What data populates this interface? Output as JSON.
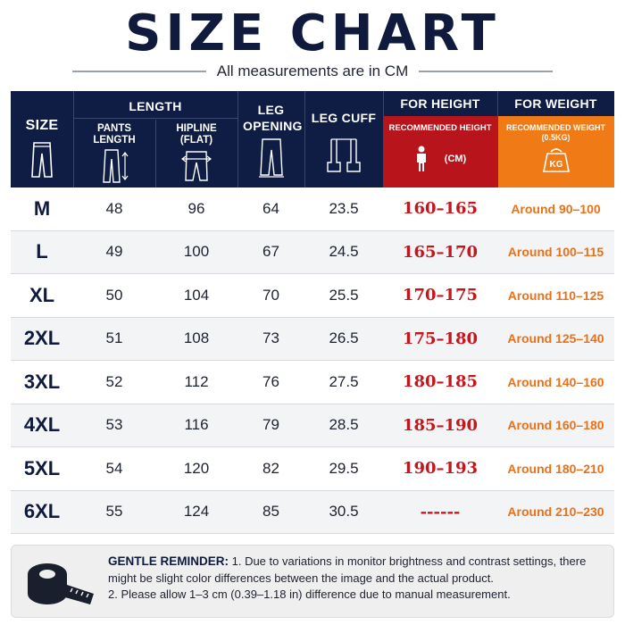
{
  "title": "SIZE CHART",
  "subtitle": "All measurements are in CM",
  "header": {
    "size": "SIZE",
    "length": "LENGTH",
    "pants_length": "PANTS LENGTH",
    "hipline": "HIPLINE (FLAT)",
    "leg_opening": "LEG OPENING",
    "leg_cuff": "LEG CUFF",
    "for_height": "FOR HEIGHT",
    "recommended_height": "RECOMMENDED HEIGHT",
    "height_unit": "(CM)",
    "for_weight": "FOR WEIGHT",
    "recommended_weight": "RECOMMENDED WEIGHT (0.5KG)",
    "weight_badge": "KG"
  },
  "colors": {
    "navy": "#0f1d44",
    "red": "#c4161c",
    "orange": "#e8711a"
  },
  "rows": [
    {
      "size": "M",
      "pants_length": "48",
      "hipline": "96",
      "leg_opening": "64",
      "leg_cuff": "23.5",
      "height": "160–165",
      "weight": "Around 90–100"
    },
    {
      "size": "L",
      "pants_length": "49",
      "hipline": "100",
      "leg_opening": "67",
      "leg_cuff": "24.5",
      "height": "165–170",
      "weight": "Around 100–115"
    },
    {
      "size": "XL",
      "pants_length": "50",
      "hipline": "104",
      "leg_opening": "70",
      "leg_cuff": "25.5",
      "height": "170–175",
      "weight": "Around 110–125"
    },
    {
      "size": "2XL",
      "pants_length": "51",
      "hipline": "108",
      "leg_opening": "73",
      "leg_cuff": "26.5",
      "height": "175–180",
      "weight": "Around 125–140"
    },
    {
      "size": "3XL",
      "pants_length": "52",
      "hipline": "112",
      "leg_opening": "76",
      "leg_cuff": "27.5",
      "height": "180–185",
      "weight": "Around 140–160"
    },
    {
      "size": "4XL",
      "pants_length": "53",
      "hipline": "116",
      "leg_opening": "79",
      "leg_cuff": "28.5",
      "height": "185–190",
      "weight": "Around 160–180"
    },
    {
      "size": "5XL",
      "pants_length": "54",
      "hipline": "120",
      "leg_opening": "82",
      "leg_cuff": "29.5",
      "height": "190–193",
      "weight": "Around 180–210"
    },
    {
      "size": "6XL",
      "pants_length": "55",
      "hipline": "124",
      "leg_opening": "85",
      "leg_cuff": "30.5",
      "height": "------",
      "weight": "Around 210–230"
    }
  ],
  "reminder": {
    "lead": "GENTLE REMINDER:",
    "line1": " 1. Due to variations in monitor brightness and contrast settings, there might be slight color differences between the image and the actual product.",
    "line2": "2. Please allow 1–3 cm (0.39–1.18 in) difference due to manual measurement."
  }
}
